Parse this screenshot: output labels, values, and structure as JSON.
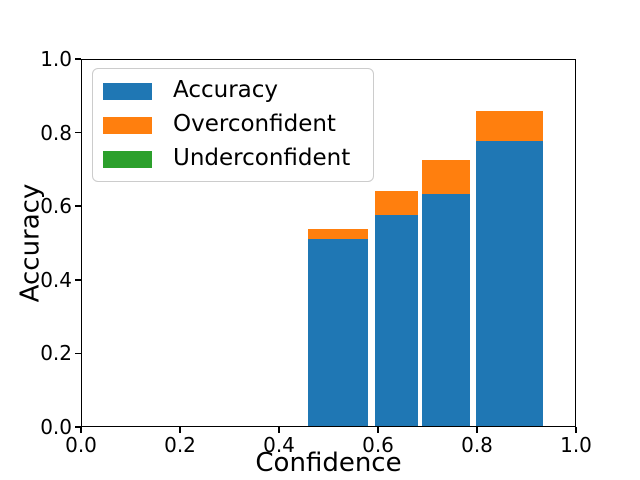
{
  "chart_data": {
    "type": "bar",
    "stacked": true,
    "title": "",
    "xlabel": "Confidence",
    "ylabel": "Accuracy",
    "xlim": [
      0.0,
      1.0
    ],
    "ylim": [
      0.0,
      1.0
    ],
    "grid": false,
    "legend_position": "upper left",
    "xtick_values": [
      0.0,
      0.2,
      0.4,
      0.6,
      0.8,
      1.0
    ],
    "xtick_labels": [
      "0.0",
      "0.2",
      "0.4",
      "0.6",
      "0.8",
      "1.0"
    ],
    "ytick_values": [
      0.0,
      0.2,
      0.4,
      0.6,
      0.8,
      1.0
    ],
    "ytick_labels": [
      "0.0",
      "0.2",
      "0.4",
      "0.6",
      "0.8",
      "1.0"
    ],
    "series": [
      {
        "name": "Accuracy",
        "color": "#1f77b4",
        "values": [
          0.512,
          0.577,
          0.635,
          0.778
        ]
      },
      {
        "name": "Overconfident",
        "color": "#ff7f0e",
        "values": [
          0.027,
          0.064,
          0.091,
          0.084
        ]
      },
      {
        "name": "Underconfident",
        "color": "#2ca02c",
        "values": [
          0.0,
          0.0,
          0.0,
          0.0
        ]
      }
    ],
    "bars": [
      {
        "x_left": 0.459,
        "x_right": 0.58,
        "x_center": 0.52
      },
      {
        "x_left": 0.594,
        "x_right": 0.682,
        "x_center": 0.638
      },
      {
        "x_left": 0.69,
        "x_right": 0.787,
        "x_center": 0.739
      },
      {
        "x_left": 0.8,
        "x_right": 0.936,
        "x_center": 0.868
      }
    ]
  },
  "legend": {
    "items": [
      {
        "label": "Accuracy",
        "color": "#1f77b4"
      },
      {
        "label": "Overconfident",
        "color": "#ff7f0e"
      },
      {
        "label": "Underconfident",
        "color": "#2ca02c"
      }
    ]
  }
}
